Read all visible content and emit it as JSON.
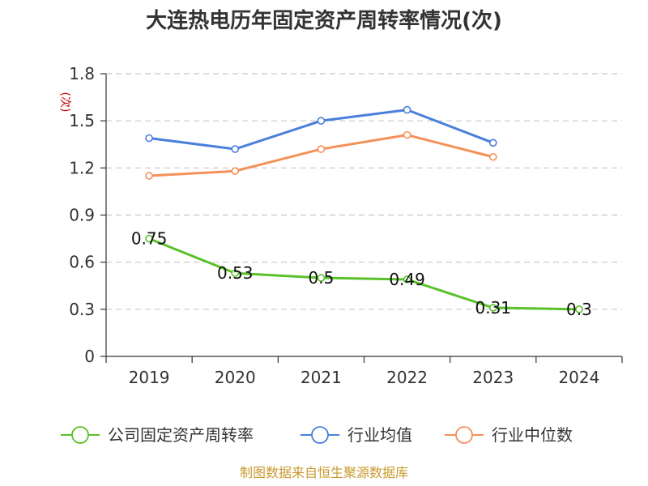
{
  "title": "大连热电历年固定资产周转率情况(次)",
  "source": "制图数据来自恒生聚源数据库",
  "chart_data": {
    "type": "line",
    "title": "大连热电历年固定资产周转率情况(次)",
    "ylabel": "(次)",
    "categories": [
      "2019",
      "2020",
      "2021",
      "2022",
      "2023",
      "2024"
    ],
    "ylim": [
      0,
      1.8
    ],
    "yticks": [
      "0",
      "0.3",
      "0.6",
      "0.9",
      "1.2",
      "1.5",
      "1.8"
    ],
    "grid": true,
    "legend_position": "bottom",
    "series": [
      {
        "name": "公司固定资产周转率",
        "color": "#5bc12a",
        "values": [
          0.75,
          0.53,
          0.5,
          0.49,
          0.31,
          0.3
        ],
        "labels": [
          "0.75",
          "0.53",
          "0.5",
          "0.49",
          "0.31",
          "0.3"
        ]
      },
      {
        "name": "行业均值",
        "color": "#4a7fdc",
        "values": [
          1.39,
          1.32,
          1.5,
          1.57,
          1.36,
          null
        ]
      },
      {
        "name": "行业中位数",
        "color": "#f59059",
        "values": [
          1.15,
          1.18,
          1.32,
          1.41,
          1.27,
          null
        ]
      }
    ]
  }
}
